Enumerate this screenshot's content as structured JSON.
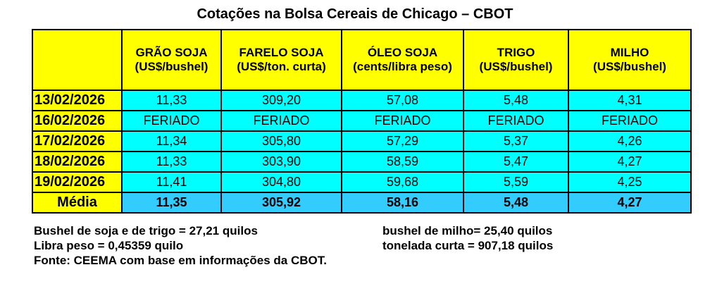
{
  "title": "Cotações na Bolsa Cereais de Chicago – CBOT",
  "columns": [
    {
      "name": "",
      "unit": ""
    },
    {
      "name": "GRÃO SOJA",
      "unit": "(US$/bushel)"
    },
    {
      "name": "FARELO SOJA",
      "unit": "(US$/ton. curta)"
    },
    {
      "name": "ÓLEO SOJA",
      "unit": "(cents/libra peso)"
    },
    {
      "name": "TRIGO",
      "unit": "(US$/bushel)"
    },
    {
      "name": "MILHO",
      "unit": "(US$/bushel)"
    }
  ],
  "rows": [
    {
      "date": "13/02/2026",
      "values": [
        "11,33",
        "309,20",
        "57,08",
        "5,48",
        "4,31"
      ]
    },
    {
      "date": "16/02/2026",
      "values": [
        "FERIADO",
        "FERIADO",
        "FERIADO",
        "FERIADO",
        "FERIADO"
      ]
    },
    {
      "date": "17/02/2026",
      "values": [
        "11,34",
        "305,80",
        "57,29",
        "5,37",
        "4,26"
      ]
    },
    {
      "date": "18/02/2026",
      "values": [
        "11,33",
        "303,90",
        "58,59",
        "5,47",
        "4,27"
      ]
    },
    {
      "date": "19/02/2026",
      "values": [
        "11,41",
        "304,80",
        "59,68",
        "5,59",
        "4,25"
      ]
    }
  ],
  "average": {
    "label": "Média",
    "values": [
      "11,35",
      "305,92",
      "58,16",
      "5,48",
      "4,27"
    ]
  },
  "notes": {
    "left": [
      "Bushel de soja e de trigo = 27,21 quilos",
      "Libra peso = 0,45359 quilo",
      "Fonte: CEEMA com base em informações da CBOT."
    ],
    "right": [
      "bushel de milho= 25,40 quilos",
      "tonelada curta = 907,18 quilos"
    ]
  },
  "colors": {
    "header_yellow": "#ffff00",
    "cell_cyan": "#00ffff",
    "average_blue": "#33ccff"
  }
}
